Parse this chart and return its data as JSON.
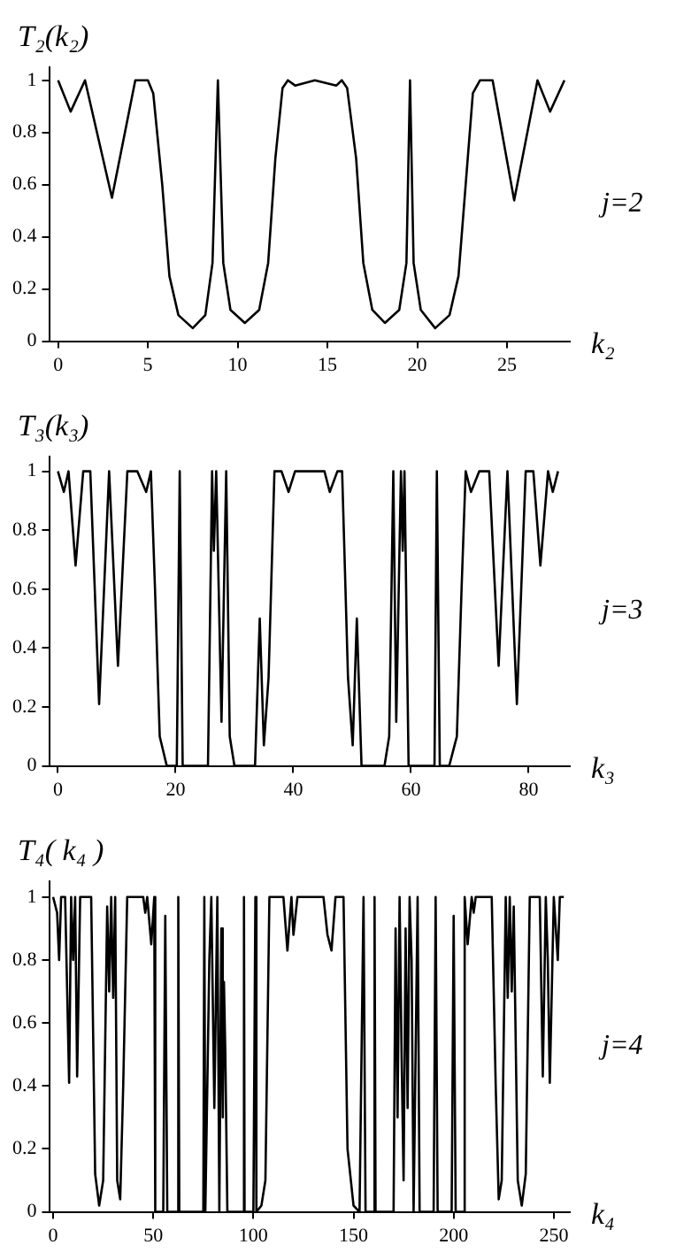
{
  "chart_data": [
    {
      "type": "line",
      "ylabel": "T₂(k₂)",
      "xlabel": "k₂",
      "annotations": [
        "j=2"
      ],
      "xlim": [
        -0.5,
        28.5
      ],
      "xticks": [
        0,
        5,
        10,
        15,
        20,
        25
      ],
      "ylim": [
        0,
        1.05
      ],
      "yticks": [
        0,
        0.2,
        0.4,
        0.6,
        0.8,
        1
      ],
      "grid": false,
      "legend": false,
      "marker": "none",
      "line_style": "solid",
      "series": [
        {
          "color": "#000000",
          "x": [
            0,
            0.7,
            1.5,
            3,
            4.3,
            5,
            5.3,
            5.8,
            6.2,
            6.7,
            7.5,
            8.2,
            8.6,
            8.9,
            9.2,
            9.6,
            10.4,
            11.2,
            11.7,
            12.1,
            12.5,
            12.8,
            13.2,
            14.3,
            15.5,
            15.8,
            16.1,
            16.6,
            17,
            17.5,
            18.2,
            19,
            19.4,
            19.6,
            19.8,
            20.2,
            21,
            21.8,
            22.3,
            22.7,
            23.1,
            23.5,
            24.2,
            25.4,
            26.7,
            27.4,
            28.2
          ],
          "values": [
            1,
            0.88,
            1,
            0.55,
            1,
            1,
            0.95,
            0.6,
            0.25,
            0.1,
            0.05,
            0.1,
            0.3,
            1,
            0.3,
            0.12,
            0.07,
            0.12,
            0.3,
            0.7,
            0.97,
            1,
            0.98,
            1,
            0.98,
            1,
            0.97,
            0.7,
            0.3,
            0.12,
            0.07,
            0.12,
            0.3,
            1,
            0.3,
            0.12,
            0.05,
            0.1,
            0.25,
            0.6,
            0.95,
            1,
            1,
            0.54,
            1,
            0.88,
            1
          ]
        }
      ]
    },
    {
      "type": "line",
      "ylabel": "T₃(k₃)",
      "xlabel": "k₃",
      "annotations": [
        "j=3"
      ],
      "xlim": [
        -1.5,
        87
      ],
      "xticks": [
        0,
        20,
        40,
        60,
        80
      ],
      "ylim": [
        0,
        1.05
      ],
      "yticks": [
        0,
        0.2,
        0.4,
        0.6,
        0.8,
        1
      ],
      "grid": false,
      "legend": false,
      "marker": "none",
      "line_style": "solid",
      "series": [
        {
          "color": "#000000",
          "x": [
            0,
            1,
            1.8,
            3,
            4.3,
            5.5,
            7,
            8.7,
            10.2,
            11.8,
            13.5,
            15,
            15.8,
            16.5,
            17.3,
            18.5,
            20.2,
            20.7,
            21.2,
            25.5,
            26.2,
            26.5,
            26.9,
            27.8,
            28.6,
            29.2,
            30,
            33.5,
            34.3,
            35,
            35.8,
            36.8,
            38,
            39.2,
            40.3,
            45.3,
            46.2,
            47.5,
            48.3,
            49.3,
            50.1,
            50.8,
            51.6,
            55.5,
            56.3,
            57,
            57.5,
            58.3,
            58.6,
            58.9,
            59.6,
            64,
            64.4,
            64.9,
            66.5,
            67.8,
            68.6,
            69.3,
            70.2,
            71.6,
            73.3,
            74.9,
            76.4,
            78,
            79.5,
            80.8,
            82,
            83.3,
            84.1,
            85
          ],
          "values": [
            1,
            0.93,
            1,
            0.68,
            1,
            1,
            0.21,
            1,
            0.34,
            1,
            1,
            0.93,
            1,
            0.6,
            0.1,
            0,
            0,
            1,
            0,
            0,
            1,
            0.73,
            1,
            0.15,
            1,
            0.1,
            0,
            0,
            0.5,
            0.07,
            0.3,
            1,
            1,
            0.93,
            1,
            1,
            0.93,
            1,
            1,
            0.3,
            0.07,
            0.5,
            0,
            0,
            0.1,
            1,
            0.15,
            1,
            0.73,
            1,
            0,
            0,
            1,
            0,
            0,
            0.1,
            0.6,
            1,
            0.93,
            1,
            1,
            0.34,
            1,
            0.21,
            1,
            1,
            0.68,
            1,
            0.93,
            1
          ]
        }
      ]
    },
    {
      "type": "line",
      "ylabel": "T₄( k₄ )",
      "xlabel": "k₄",
      "annotations": [
        "j=4"
      ],
      "xlim": [
        -2,
        258
      ],
      "xticks": [
        0,
        50,
        100,
        150,
        200,
        250
      ],
      "ylim": [
        0,
        1.05
      ],
      "yticks": [
        0,
        0.2,
        0.4,
        0.6,
        0.8,
        1
      ],
      "grid": false,
      "legend": false,
      "marker": "none",
      "line_style": "solid",
      "series": [
        {
          "color": "#000000",
          "x": [
            0,
            2,
            3,
            4,
            6,
            8,
            9,
            10,
            11,
            12,
            13.5,
            19,
            21,
            23,
            25,
            27,
            28,
            29,
            30,
            31,
            32,
            33.5,
            35,
            37,
            45,
            46,
            47,
            49,
            50.5,
            51,
            55,
            56,
            57,
            62,
            62.5,
            63,
            75,
            75.5,
            76,
            78,
            79,
            80.5,
            82,
            83,
            84,
            84.7,
            85.3,
            86,
            87,
            95,
            95.3,
            95.6,
            100,
            101,
            101.5,
            104,
            106,
            108,
            110,
            115,
            117,
            119,
            120,
            122,
            135,
            137,
            139,
            141,
            145,
            147,
            150,
            153,
            155,
            156,
            160,
            160.5,
            161,
            170,
            171,
            172,
            173,
            174,
            175,
            176,
            177,
            178,
            179,
            180,
            182,
            183,
            190,
            191,
            192,
            199,
            200,
            201,
            205,
            205.5,
            207,
            209,
            210,
            211,
            219,
            221,
            222.5,
            224,
            226,
            227,
            228,
            229,
            230,
            232,
            234,
            236,
            238,
            243,
            244.5,
            246,
            247,
            248,
            250,
            252,
            253,
            255
          ],
          "values": [
            1,
            0.95,
            0.8,
            1,
            1,
            0.41,
            1,
            0.8,
            1,
            0.43,
            1,
            1,
            0.12,
            0.02,
            0.1,
            0.97,
            0.7,
            1,
            0.68,
            1,
            0.1,
            0.04,
            0.4,
            1,
            1,
            0.95,
            1,
            0.85,
            1,
            0,
            0,
            0.94,
            0,
            0,
            1,
            0,
            0,
            1,
            0,
            0.8,
            1,
            0.33,
            1,
            0,
            0.9,
            0.3,
            0.73,
            0.5,
            0,
            0,
            1,
            0,
            0,
            1,
            0,
            0.02,
            0.1,
            1,
            1,
            1,
            0.83,
            1,
            0.88,
            1,
            1,
            0.88,
            0.83,
            1,
            1,
            0.2,
            0.02,
            0,
            1,
            0,
            0,
            1,
            0,
            0,
            0.9,
            0.3,
            1,
            0.5,
            0.1,
            0.9,
            0.33,
            1,
            0.8,
            0,
            1,
            0,
            0,
            1,
            0,
            0,
            0.94,
            0,
            0,
            1,
            0.85,
            1,
            0.95,
            1,
            1,
            0.4,
            0.04,
            0.1,
            1,
            0.68,
            1,
            0.7,
            0.97,
            0.1,
            0.02,
            0.12,
            1,
            1,
            0.43,
            1,
            0.8,
            0.41,
            1,
            0.8,
            1,
            1
          ]
        }
      ]
    }
  ]
}
